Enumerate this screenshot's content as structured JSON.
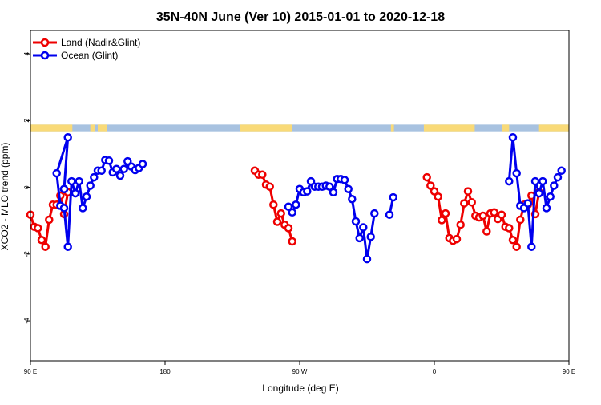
{
  "chart_data": {
    "type": "line",
    "title": "35N-40N June (Ver 10)   2015-01-01 to 2020-12-18",
    "xlabel": "Longitude (deg E)",
    "ylabel": "XCO2 - MLO trend (ppm)",
    "xlim": [
      90,
      450
    ],
    "ylim": [
      -5.2,
      4.7
    ],
    "x_ticks": [
      {
        "value": 90,
        "label": "90 E"
      },
      {
        "value": 180,
        "label": "180"
      },
      {
        "value": 270,
        "label": "90 W"
      },
      {
        "value": 360,
        "label": "0"
      },
      {
        "value": 450,
        "label": "90 E"
      },
      {
        "value": 540,
        "label": "180"
      }
    ],
    "y_ticks": [
      -4,
      -2,
      0,
      2,
      4
    ],
    "legend_position": "top-left",
    "grid": false,
    "land_sea_strip": {
      "y_range": [
        1.68,
        1.88
      ],
      "land_color": "#F9DA78",
      "ocean_color": "#A8C2E0",
      "land_segments": [
        [
          90,
          118
        ],
        [
          130,
          133
        ],
        [
          135,
          141
        ],
        [
          230,
          265
        ],
        [
          331,
          333
        ],
        [
          353,
          387
        ],
        [
          405,
          410
        ],
        [
          430,
          500
        ],
        [
          513,
          517
        ],
        [
          522,
          540
        ]
      ]
    },
    "series": [
      {
        "name": "Land (Nadir&Glint)",
        "color": "#EE0000",
        "points": [
          [
            90.0,
            -0.82
          ],
          [
            92.5,
            -1.18
          ],
          [
            95.0,
            -1.22
          ],
          [
            97.5,
            -1.58
          ],
          [
            100.0,
            -1.78
          ],
          [
            102.5,
            -0.97
          ],
          [
            105.0,
            -0.52
          ],
          [
            107.5,
            -0.52
          ],
          [
            110.0,
            -0.25
          ],
          [
            112.5,
            -0.8
          ],
          [
            115.0,
            -0.15
          ],
          null,
          [
            240.0,
            0.5
          ],
          [
            242.5,
            0.38
          ],
          [
            245.0,
            0.38
          ],
          [
            247.5,
            0.08
          ],
          [
            250.0,
            0.02
          ],
          [
            252.5,
            -0.52
          ],
          [
            255.0,
            -1.03
          ],
          [
            257.5,
            -0.78
          ],
          [
            260.0,
            -1.12
          ],
          [
            262.5,
            -1.22
          ],
          [
            265.0,
            -1.62
          ],
          null,
          [
            355.0,
            0.3
          ],
          [
            357.5,
            0.05
          ],
          [
            360.0,
            -0.12
          ],
          [
            362.5,
            -0.28
          ],
          [
            365.0,
            -0.98
          ],
          [
            367.5,
            -0.78
          ],
          [
            370.0,
            -1.52
          ],
          [
            372.5,
            -1.6
          ],
          [
            375.0,
            -1.55
          ],
          [
            377.5,
            -1.12
          ],
          [
            380.0,
            -0.48
          ],
          [
            382.5,
            -0.12
          ],
          [
            385.0,
            -0.45
          ],
          [
            387.5,
            -0.85
          ],
          [
            390.0,
            -0.9
          ],
          [
            392.5,
            -0.85
          ],
          [
            395.0,
            -1.32
          ],
          [
            397.5,
            -0.78
          ],
          [
            400.0,
            -0.75
          ],
          [
            402.5,
            -0.95
          ],
          [
            405.0,
            -0.82
          ],
          [
            407.5,
            -1.18
          ],
          [
            410.0,
            -1.22
          ],
          [
            412.5,
            -1.58
          ],
          [
            415.0,
            -1.78
          ],
          [
            417.5,
            -0.97
          ],
          [
            420.0,
            -0.52
          ],
          [
            422.5,
            -0.52
          ],
          [
            425.0,
            -0.25
          ],
          [
            427.5,
            -0.8
          ],
          [
            430.0,
            -0.15
          ]
        ]
      },
      {
        "name": "Ocean (Glint)",
        "color": "#0000EE",
        "points": [
          [
            112.5,
            -0.05
          ],
          null,
          [
            112.5,
            -0.05
          ],
          [
            115.0,
            1.5
          ],
          [
            107.5,
            0.42
          ],
          [
            110.0,
            -0.55
          ],
          [
            112.5,
            -0.62
          ],
          [
            115.0,
            -1.78
          ],
          [
            117.5,
            0.18
          ],
          [
            120.0,
            -0.18
          ],
          [
            122.5,
            0.18
          ],
          [
            125.0,
            -0.62
          ],
          [
            127.5,
            -0.28
          ],
          [
            130.0,
            0.05
          ],
          [
            132.5,
            0.3
          ],
          [
            135.0,
            0.5
          ],
          [
            137.5,
            0.5
          ],
          [
            140.0,
            0.82
          ],
          [
            142.5,
            0.8
          ],
          [
            145.0,
            0.45
          ],
          [
            147.5,
            0.55
          ],
          [
            150.0,
            0.35
          ],
          [
            152.5,
            0.55
          ],
          [
            155.0,
            0.78
          ],
          [
            157.5,
            0.62
          ],
          [
            160.0,
            0.52
          ],
          [
            162.5,
            0.58
          ],
          [
            165.0,
            0.7
          ],
          null,
          [
            262.5,
            -0.58
          ],
          [
            265.0,
            -0.75
          ],
          [
            267.5,
            -0.52
          ],
          [
            270.0,
            -0.05
          ],
          [
            272.5,
            -0.15
          ],
          [
            275.0,
            -0.12
          ],
          [
            277.5,
            0.18
          ],
          [
            280.0,
            0.02
          ],
          [
            282.5,
            0.02
          ],
          [
            285.0,
            0.02
          ],
          [
            287.5,
            0.05
          ],
          [
            290.0,
            0.02
          ],
          [
            292.5,
            -0.15
          ],
          [
            295.0,
            0.25
          ],
          [
            297.5,
            0.25
          ],
          [
            300.0,
            0.22
          ],
          [
            302.5,
            -0.05
          ],
          [
            305.0,
            -0.35
          ],
          [
            307.5,
            -1.02
          ],
          [
            310.0,
            -1.52
          ],
          [
            312.5,
            -1.2
          ],
          [
            315.0,
            -2.15
          ],
          [
            317.5,
            -1.48
          ],
          [
            320.0,
            -0.78
          ],
          null,
          [
            330.0,
            -0.82
          ],
          [
            332.5,
            -0.3
          ],
          null,
          [
            410.0,
            0.18
          ],
          [
            412.5,
            1.5
          ],
          [
            415.0,
            0.42
          ],
          [
            417.5,
            -0.55
          ],
          [
            420.0,
            -0.62
          ],
          [
            422.5,
            -0.48
          ],
          [
            425.0,
            -1.78
          ],
          [
            427.5,
            0.18
          ],
          [
            430.0,
            -0.18
          ],
          [
            432.5,
            0.18
          ],
          [
            435.0,
            -0.62
          ],
          [
            437.5,
            -0.28
          ],
          [
            440.0,
            0.05
          ],
          [
            442.5,
            0.3
          ],
          [
            445.0,
            0.5
          ]
        ]
      }
    ]
  }
}
